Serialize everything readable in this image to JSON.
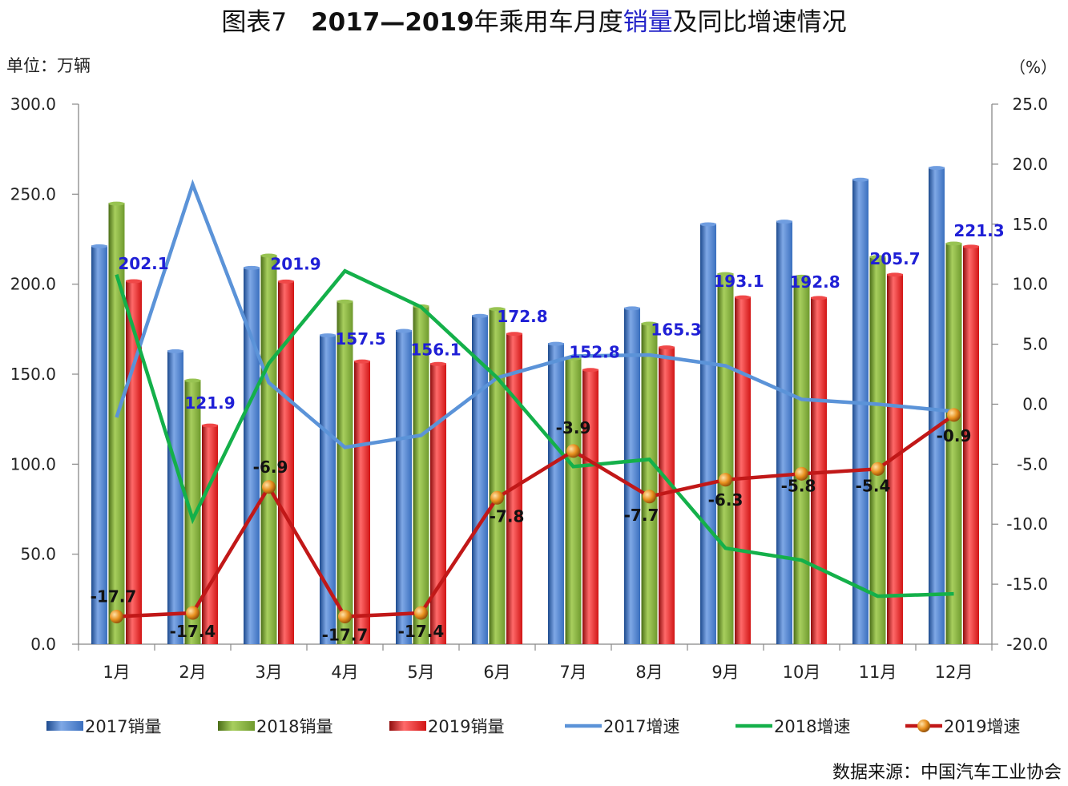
{
  "title": {
    "prefix": "图表7",
    "years": "2017—2019",
    "part1": "年乘用车月度",
    "highlight": "销量",
    "part2": "及同比增速情况"
  },
  "unit_left": "单位：万辆",
  "unit_right": "（%）",
  "source": "数据来源：中国汽车工业协会",
  "colors": {
    "bar2017": "#3a6fbe",
    "bar2018": "#6f9a2e",
    "bar2019": "#d11515",
    "line2017": "#5b93d8",
    "line2018": "#14b04a",
    "line2019": "#c11818",
    "marker2019": "#e8901e",
    "sales_label": "#1f1fd6"
  },
  "chart_data": {
    "type": "bar",
    "categories": [
      "1月",
      "2月",
      "3月",
      "4月",
      "5月",
      "6月",
      "7月",
      "8月",
      "9月",
      "10月",
      "11月",
      "12月"
    ],
    "series": [
      {
        "name": "2017销量",
        "axis": "left",
        "kind": "bar",
        "values": [
          221.5,
          163.2,
          209.5,
          172.0,
          174.5,
          182.8,
          167.3,
          187.0,
          233.7,
          235.2,
          258.5,
          265.0
        ]
      },
      {
        "name": "2018销量",
        "axis": "left",
        "kind": "bar",
        "values": [
          245.2,
          146.9,
          216.3,
          190.8,
          188.1,
          186.6,
          159.2,
          178.5,
          206.0,
          204.6,
          215.5,
          223.0
        ]
      },
      {
        "name": "2019销量",
        "axis": "left",
        "kind": "bar",
        "values": [
          202.1,
          121.9,
          201.9,
          157.5,
          156.1,
          172.8,
          152.8,
          165.3,
          193.1,
          192.8,
          205.7,
          221.3
        ],
        "labels": [
          "202.1",
          "121.9",
          "201.9",
          "157.5",
          "156.1",
          "172.8",
          "152.8",
          "165.3",
          "193.1",
          "192.8",
          "205.7",
          "221.3"
        ]
      },
      {
        "name": "2017增速",
        "axis": "right",
        "kind": "line",
        "values": [
          -1.1,
          18.3,
          1.8,
          -3.6,
          -2.6,
          2.2,
          4.0,
          4.1,
          3.2,
          0.4,
          0.0,
          -0.6
        ]
      },
      {
        "name": "2018增速",
        "axis": "right",
        "kind": "line",
        "values": [
          10.8,
          -9.6,
          3.4,
          11.1,
          8.1,
          2.2,
          -5.2,
          -4.6,
          -12.0,
          -13.0,
          -16.0,
          -15.8
        ]
      },
      {
        "name": "2019增速",
        "axis": "right",
        "kind": "line-marker",
        "values": [
          -17.7,
          -17.4,
          -6.9,
          -17.7,
          -17.4,
          -7.8,
          -3.9,
          -7.7,
          -6.3,
          -5.8,
          -5.4,
          -0.9
        ],
        "labels": [
          "-17.7",
          "-17.4",
          "-6.9",
          "-17.7",
          "-17.4",
          "-7.8",
          "-3.9",
          "-7.7",
          "-6.3",
          "-5.8",
          "-5.4",
          "-0.9"
        ]
      }
    ],
    "y_left": {
      "min": 0,
      "max": 300,
      "step": 50,
      "ticks": [
        "0.0",
        "50.0",
        "100.0",
        "150.0",
        "200.0",
        "250.0",
        "300.0"
      ]
    },
    "y_right": {
      "min": -20,
      "max": 25,
      "step": 5,
      "ticks": [
        "-20.0",
        "-15.0",
        "-10.0",
        "-5.0",
        "0.0",
        "5.0",
        "10.0",
        "15.0",
        "20.0",
        "25.0"
      ]
    },
    "grid": false,
    "legend_position": "bottom"
  }
}
